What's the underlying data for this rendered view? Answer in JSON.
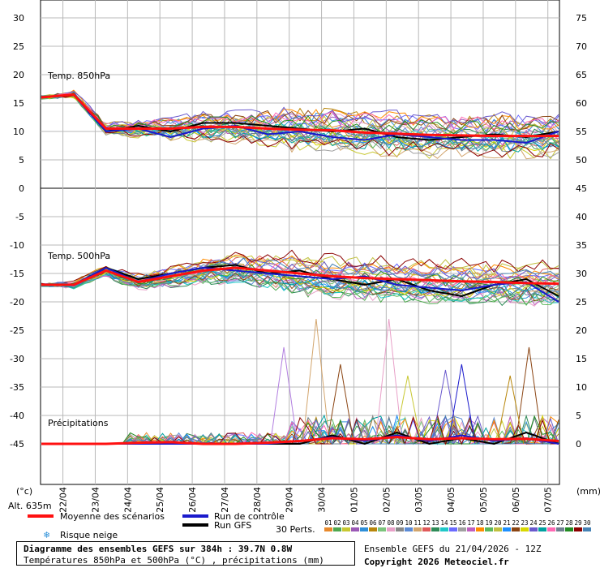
{
  "footer": {
    "line1": "Diagramme des ensembles GEFS sur 384h : 39.7N 0.8W",
    "line2": "Températures 850hPa et 500hPa (°C) , précipitations (mm)",
    "run": "Ensemble GEFS du 21/04/2026 - 12Z",
    "copyright": "Copyright 2026 Meteociel.fr"
  },
  "legend": {
    "mean": "Moyenne des scénarios",
    "control": "Run de contrôle",
    "gfs": "Run GFS",
    "snow": "Risque neige",
    "perts": "30 Perts.",
    "pert_ids": [
      "01",
      "02",
      "03",
      "04",
      "05",
      "06",
      "07",
      "08",
      "09",
      "10",
      "11",
      "12",
      "13",
      "14",
      "15",
      "16",
      "17",
      "18",
      "19",
      "20",
      "21",
      "22",
      "23",
      "24",
      "25",
      "26",
      "27",
      "28",
      "29",
      "30"
    ],
    "pert_colors": [
      "#e8892b",
      "#4fa84f",
      "#c8c832",
      "#9b59b6",
      "#2f8fd8",
      "#b8860b",
      "#7cc47c",
      "#e8a0c8",
      "#888888",
      "#5b8bd6",
      "#d2a56d",
      "#e05a5a",
      "#2e8b57",
      "#20c8c8",
      "#6b6bff",
      "#a0a0a0",
      "#c060c0",
      "#ff8c00",
      "#5cb85c",
      "#c0c040",
      "#1e90ff",
      "#8b4513",
      "#d8d800",
      "#6a5acd",
      "#00a0a0",
      "#ff69b4",
      "#708090",
      "#228b22",
      "#8b0000",
      "#4682b4"
    ],
    "mean_color": "#ff1010",
    "control_color": "#1a1acc",
    "gfs_color": "#000000"
  },
  "chart_data": {
    "type": "line",
    "x_labels": [
      "22/04",
      "23/04",
      "24/04",
      "25/04",
      "26/04",
      "27/04",
      "28/04",
      "29/04",
      "30/04",
      "01/05",
      "02/05",
      "03/05",
      "04/05",
      "05/05",
      "06/05",
      "07/05"
    ],
    "left_ticks": [
      "30",
      "25",
      "20",
      "15",
      "10",
      "5",
      "0",
      "-5",
      "-10",
      "-15",
      "-20",
      "-25",
      "-30",
      "-35",
      "-40",
      "-45"
    ],
    "right_ticks": [
      "75",
      "70",
      "65",
      "60",
      "55",
      "50",
      "45",
      "40",
      "35",
      "30",
      "25",
      "20",
      "15",
      "10",
      "5",
      "0"
    ],
    "left_unit": "(°c)",
    "right_unit": "(mm)",
    "altitude": "Alt. 635m",
    "panels": {
      "t850": "Temp. 850hPa",
      "t500": "Temp. 500hPa",
      "precip": "Précipitations"
    },
    "lead_hours": [
      0,
      24,
      48,
      72,
      96,
      120,
      144,
      168,
      192,
      216,
      240,
      264,
      288,
      312,
      336,
      360,
      384
    ],
    "series": [
      {
        "name": "Moyenne des scénarios",
        "panel": "t850",
        "unit": "°C",
        "values": [
          16,
          16.5,
          10.5,
          10.5,
          10.5,
          10.8,
          10.8,
          10.5,
          10.3,
          10.2,
          9.8,
          9.6,
          9.4,
          9.3,
          9.2,
          9.2,
          9.2
        ]
      },
      {
        "name": "Run de contrôle",
        "panel": "t850",
        "unit": "°C",
        "values": [
          16,
          16.5,
          10,
          10.5,
          9,
          10.5,
          11,
          9.5,
          10,
          9,
          8.5,
          9.5,
          9,
          8.5,
          8.5,
          8,
          10
        ]
      },
      {
        "name": "Run GFS",
        "panel": "t850",
        "unit": "°C",
        "values": [
          16,
          16.5,
          10,
          11,
          10,
          11.5,
          11.5,
          11,
          10.5,
          10,
          10.5,
          9,
          8.5,
          9,
          9.5,
          9,
          10
        ]
      },
      {
        "name": "Moyenne des scénarios",
        "panel": "t500",
        "unit": "°C",
        "values": [
          -17,
          -17,
          -14.5,
          -16.5,
          -15.5,
          -14.5,
          -14,
          -14.5,
          -15,
          -15.5,
          -15.8,
          -16,
          -16.2,
          -16.4,
          -16.5,
          -16.7,
          -16.8
        ]
      },
      {
        "name": "Run de contrôle",
        "panel": "t500",
        "unit": "°C",
        "values": [
          -17,
          -17,
          -14,
          -16.5,
          -15,
          -14,
          -14.5,
          -15,
          -15.5,
          -16,
          -15.5,
          -17,
          -17.5,
          -18,
          -17,
          -16.5,
          -20
        ]
      },
      {
        "name": "Run GFS",
        "panel": "t500",
        "unit": "°C",
        "values": [
          -17,
          -17,
          -14,
          -16,
          -15,
          -14,
          -13.5,
          -15,
          -14.5,
          -16,
          -17,
          -16,
          -18,
          -19,
          -17,
          -16,
          -19
        ]
      },
      {
        "name": "Moyenne des scénarios",
        "panel": "precip",
        "unit": "mm",
        "values": [
          0,
          0,
          0,
          0.2,
          0.3,
          0,
          0,
          0.2,
          0.5,
          1,
          0.8,
          1.2,
          0.8,
          1,
          0.8,
          0.9,
          0.5
        ]
      },
      {
        "name": "Run de contrôle",
        "panel": "precip",
        "unit": "mm",
        "values": [
          0,
          0,
          0,
          0,
          0,
          0,
          0,
          0,
          0.5,
          1.2,
          0.5,
          1.5,
          0.5,
          1.5,
          0.5,
          1,
          0
        ]
      },
      {
        "name": "Run GFS",
        "panel": "precip",
        "unit": "mm",
        "values": [
          0,
          0,
          0,
          0,
          0,
          0,
          0,
          0,
          0,
          1.5,
          0,
          2,
          0,
          1,
          0,
          2,
          0
        ]
      }
    ],
    "legend_placement": "bottom",
    "grid": true
  }
}
